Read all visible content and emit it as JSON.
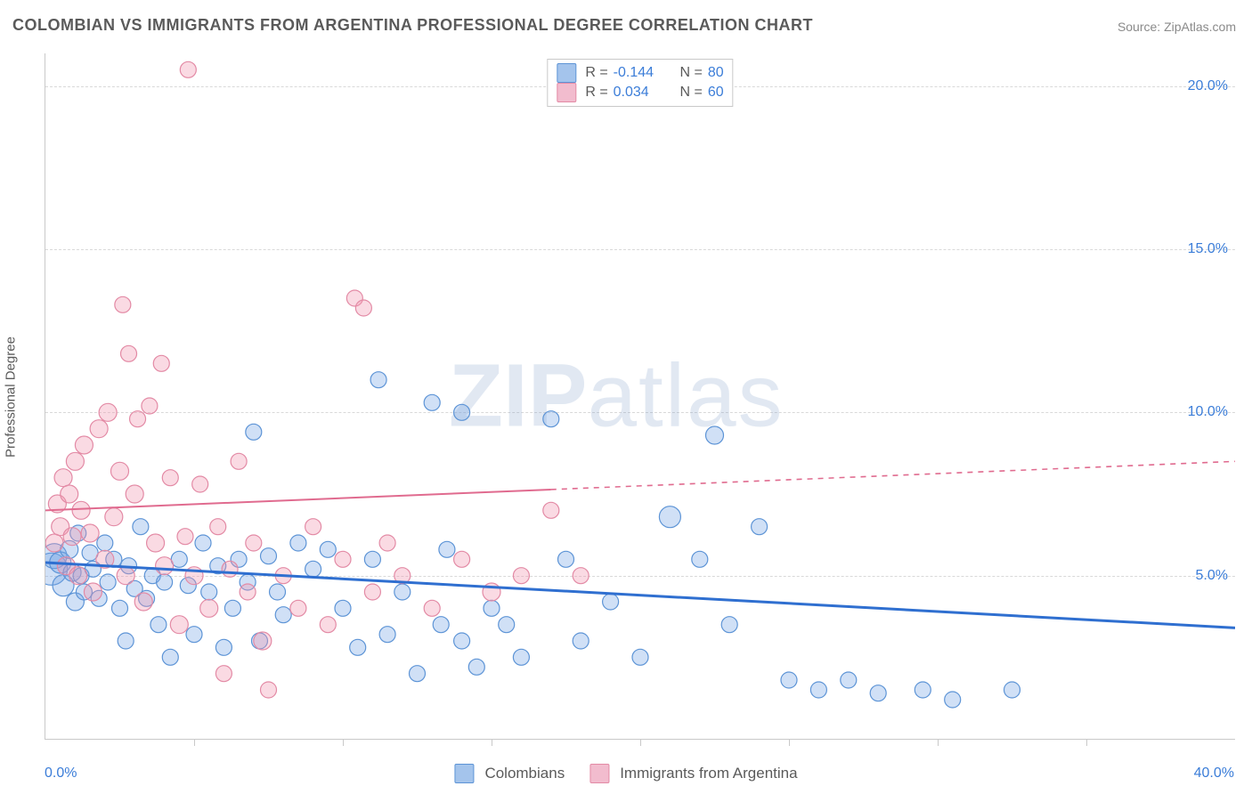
{
  "title": "COLOMBIAN VS IMMIGRANTS FROM ARGENTINA PROFESSIONAL DEGREE CORRELATION CHART",
  "source_label": "Source:",
  "source_name": "ZipAtlas.com",
  "watermark_zip": "ZIP",
  "watermark_atlas": "atlas",
  "ylabel": "Professional Degree",
  "chart": {
    "type": "scatter-correlation",
    "background_color": "#ffffff",
    "grid_color": "#d9d9d9",
    "axis_color": "#c9c9c9",
    "text_color": "#5a5a5a",
    "value_color": "#3b7dd8",
    "xlim": [
      0,
      40
    ],
    "ylim": [
      0,
      21
    ],
    "ytick_values": [
      5,
      10,
      15,
      20
    ],
    "ytick_labels": [
      "5.0%",
      "10.0%",
      "15.0%",
      "20.0%"
    ],
    "xtick_values": [
      5,
      10,
      15,
      20,
      25,
      30,
      35
    ],
    "xmin_label": "0.0%",
    "xmax_label": "40.0%",
    "title_fontsize": 18,
    "label_fontsize": 15,
    "tick_fontsize": 16,
    "watermark_fontsize": 100,
    "series": [
      {
        "name": "Colombians",
        "color_fill": "rgba(120,165,230,0.35)",
        "color_stroke": "#5d94d6",
        "swatch_fill": "#a4c4ec",
        "swatch_stroke": "#5d94d6",
        "marker_radius": 9,
        "R": "-0.144",
        "N": "80",
        "trend": {
          "x1": 0,
          "y1": 5.4,
          "x2": 40,
          "y2": 3.4,
          "stroke": "#2f6fd0",
          "width": 3,
          "solid_until_x": 40
        },
        "points": [
          [
            0.2,
            5.2,
            18
          ],
          [
            0.3,
            5.6,
            14
          ],
          [
            0.5,
            5.4,
            12
          ],
          [
            0.6,
            4.7,
            12
          ],
          [
            0.8,
            5.8,
            10
          ],
          [
            0.9,
            5.1,
            10
          ],
          [
            1.0,
            4.2,
            10
          ],
          [
            1.1,
            6.3,
            9
          ],
          [
            1.2,
            5.0,
            9
          ],
          [
            1.3,
            4.5,
            9
          ],
          [
            1.5,
            5.7,
            9
          ],
          [
            1.6,
            5.2,
            9
          ],
          [
            1.8,
            4.3,
            9
          ],
          [
            2.0,
            6.0,
            9
          ],
          [
            2.1,
            4.8,
            9
          ],
          [
            2.3,
            5.5,
            9
          ],
          [
            2.5,
            4.0,
            9
          ],
          [
            2.7,
            3.0,
            9
          ],
          [
            2.8,
            5.3,
            9
          ],
          [
            3.0,
            4.6,
            9
          ],
          [
            3.2,
            6.5,
            9
          ],
          [
            3.4,
            4.3,
            9
          ],
          [
            3.6,
            5.0,
            9
          ],
          [
            3.8,
            3.5,
            9
          ],
          [
            4.0,
            4.8,
            9
          ],
          [
            4.2,
            2.5,
            9
          ],
          [
            4.5,
            5.5,
            9
          ],
          [
            4.8,
            4.7,
            9
          ],
          [
            5.0,
            3.2,
            9
          ],
          [
            5.3,
            6.0,
            9
          ],
          [
            5.5,
            4.5,
            9
          ],
          [
            5.8,
            5.3,
            9
          ],
          [
            6.0,
            2.8,
            9
          ],
          [
            6.3,
            4.0,
            9
          ],
          [
            6.5,
            5.5,
            9
          ],
          [
            6.8,
            4.8,
            9
          ],
          [
            7.0,
            9.4,
            9
          ],
          [
            7.2,
            3.0,
            9
          ],
          [
            7.5,
            5.6,
            9
          ],
          [
            7.8,
            4.5,
            9
          ],
          [
            8.0,
            3.8,
            9
          ],
          [
            8.5,
            6.0,
            9
          ],
          [
            9.0,
            5.2,
            9
          ],
          [
            9.5,
            5.8,
            9
          ],
          [
            10.0,
            4.0,
            9
          ],
          [
            10.5,
            2.8,
            9
          ],
          [
            11.0,
            5.5,
            9
          ],
          [
            11.2,
            11.0,
            9
          ],
          [
            11.5,
            3.2,
            9
          ],
          [
            12.0,
            4.5,
            9
          ],
          [
            12.5,
            2.0,
            9
          ],
          [
            13.0,
            10.3,
            9
          ],
          [
            13.3,
            3.5,
            9
          ],
          [
            13.5,
            5.8,
            9
          ],
          [
            14.0,
            3.0,
            9
          ],
          [
            14.0,
            10.0,
            9
          ],
          [
            14.5,
            2.2,
            9
          ],
          [
            15.0,
            4.0,
            9
          ],
          [
            15.5,
            3.5,
            9
          ],
          [
            16.0,
            2.5,
            9
          ],
          [
            17.0,
            9.8,
            9
          ],
          [
            17.5,
            5.5,
            9
          ],
          [
            18.0,
            3.0,
            9
          ],
          [
            19.0,
            4.2,
            9
          ],
          [
            20.0,
            2.5,
            9
          ],
          [
            21.0,
            6.8,
            12
          ],
          [
            22.0,
            5.5,
            9
          ],
          [
            22.5,
            9.3,
            10
          ],
          [
            23.0,
            3.5,
            9
          ],
          [
            24.0,
            6.5,
            9
          ],
          [
            25.0,
            1.8,
            9
          ],
          [
            26.0,
            1.5,
            9
          ],
          [
            27.0,
            1.8,
            9
          ],
          [
            28.0,
            1.4,
            9
          ],
          [
            29.5,
            1.5,
            9
          ],
          [
            30.5,
            1.2,
            9
          ],
          [
            32.5,
            1.5,
            9
          ]
        ]
      },
      {
        "name": "Immigrants from Argentina",
        "color_fill": "rgba(240,150,175,0.35)",
        "color_stroke": "#e38aa5",
        "swatch_fill": "#f2bcce",
        "swatch_stroke": "#e38aa5",
        "marker_radius": 9,
        "R": "0.034",
        "N": "60",
        "trend": {
          "x1": 0,
          "y1": 7.0,
          "x2": 40,
          "y2": 8.5,
          "stroke": "#e06b8f",
          "width": 2,
          "solid_until_x": 17
        },
        "points": [
          [
            0.3,
            6.0,
            10
          ],
          [
            0.4,
            7.2,
            10
          ],
          [
            0.5,
            6.5,
            10
          ],
          [
            0.6,
            8.0,
            10
          ],
          [
            0.7,
            5.3,
            10
          ],
          [
            0.8,
            7.5,
            10
          ],
          [
            0.9,
            6.2,
            10
          ],
          [
            1.0,
            8.5,
            10
          ],
          [
            1.1,
            5.0,
            10
          ],
          [
            1.2,
            7.0,
            10
          ],
          [
            1.3,
            9.0,
            10
          ],
          [
            1.5,
            6.3,
            10
          ],
          [
            1.6,
            4.5,
            10
          ],
          [
            1.8,
            9.5,
            10
          ],
          [
            2.0,
            5.5,
            10
          ],
          [
            2.1,
            10.0,
            10
          ],
          [
            2.3,
            6.8,
            10
          ],
          [
            2.5,
            8.2,
            10
          ],
          [
            2.6,
            13.3,
            9
          ],
          [
            2.7,
            5.0,
            10
          ],
          [
            2.8,
            11.8,
            9
          ],
          [
            3.0,
            7.5,
            10
          ],
          [
            3.1,
            9.8,
            9
          ],
          [
            3.3,
            4.2,
            10
          ],
          [
            3.5,
            10.2,
            9
          ],
          [
            3.7,
            6.0,
            10
          ],
          [
            3.9,
            11.5,
            9
          ],
          [
            4.0,
            5.3,
            10
          ],
          [
            4.2,
            8.0,
            9
          ],
          [
            4.5,
            3.5,
            10
          ],
          [
            4.7,
            6.2,
            9
          ],
          [
            4.8,
            20.5,
            9
          ],
          [
            5.0,
            5.0,
            10
          ],
          [
            5.2,
            7.8,
            9
          ],
          [
            5.5,
            4.0,
            10
          ],
          [
            5.8,
            6.5,
            9
          ],
          [
            6.0,
            2.0,
            9
          ],
          [
            6.2,
            5.2,
            9
          ],
          [
            6.5,
            8.5,
            9
          ],
          [
            6.8,
            4.5,
            9
          ],
          [
            7.0,
            6.0,
            9
          ],
          [
            7.3,
            3.0,
            10
          ],
          [
            7.5,
            1.5,
            9
          ],
          [
            8.0,
            5.0,
            9
          ],
          [
            8.5,
            4.0,
            9
          ],
          [
            9.0,
            6.5,
            9
          ],
          [
            9.5,
            3.5,
            9
          ],
          [
            10.0,
            5.5,
            9
          ],
          [
            10.4,
            13.5,
            9
          ],
          [
            10.7,
            13.2,
            9
          ],
          [
            11.0,
            4.5,
            9
          ],
          [
            11.5,
            6.0,
            9
          ],
          [
            12.0,
            5.0,
            9
          ],
          [
            13.0,
            4.0,
            9
          ],
          [
            14.0,
            5.5,
            9
          ],
          [
            15.0,
            4.5,
            10
          ],
          [
            16.0,
            5.0,
            9
          ],
          [
            17.0,
            7.0,
            9
          ],
          [
            18.0,
            5.0,
            9
          ]
        ]
      }
    ],
    "legend_bottom": [
      {
        "label": "Colombians",
        "series": 0
      },
      {
        "label": "Immigrants from Argentina",
        "series": 1
      }
    ]
  }
}
